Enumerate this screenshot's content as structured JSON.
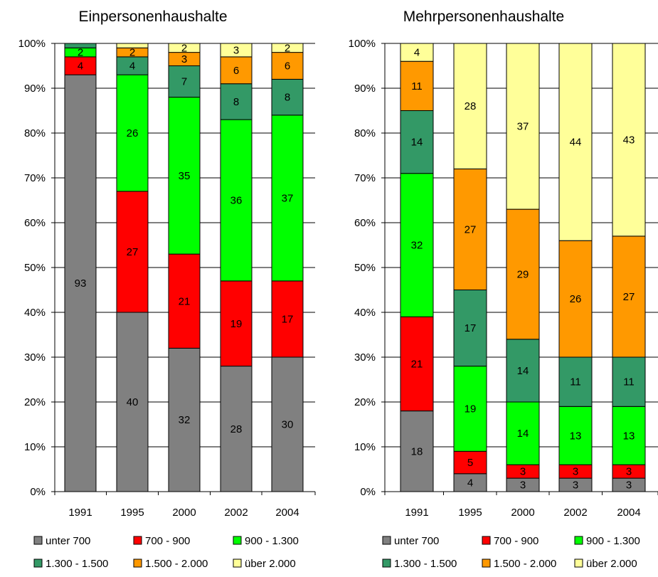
{
  "chart_data": [
    {
      "type": "bar",
      "stacked": true,
      "normalized": true,
      "title": "Einpersonenhaushalte",
      "categories": [
        "1991",
        "1995",
        "2000",
        "2002",
        "2004"
      ],
      "ylim": [
        0,
        100
      ],
      "yticks": [
        "0%",
        "10%",
        "20%",
        "30%",
        "40%",
        "50%",
        "60%",
        "70%",
        "80%",
        "90%",
        "100%"
      ],
      "grid": true,
      "legend_position": "bottom",
      "series": [
        {
          "name": "unter 700",
          "color": "#808080",
          "values": [
            93,
            40,
            32,
            28,
            30
          ]
        },
        {
          "name": "700 - 900",
          "color": "#ff0000",
          "values": [
            4,
            27,
            21,
            19,
            17
          ]
        },
        {
          "name": "900 - 1.300",
          "color": "#00ff00",
          "values": [
            2,
            26,
            35,
            36,
            37
          ]
        },
        {
          "name": "1.300 - 1.500",
          "color": "#339966",
          "values": [
            1,
            4,
            7,
            8,
            8
          ]
        },
        {
          "name": "1.500 - 2.000",
          "color": "#ff9900",
          "values": [
            0,
            2,
            3,
            6,
            6
          ]
        },
        {
          "name": "über 2.000",
          "color": "#ffff99",
          "values": [
            0,
            1,
            2,
            3,
            2
          ]
        }
      ],
      "data_labels": [
        [
          "93",
          "40",
          "32",
          "28",
          "30"
        ],
        [
          "4",
          "27",
          "21",
          "19",
          "17"
        ],
        [
          "2",
          "26",
          "35",
          "36",
          "37"
        ],
        [
          "",
          "4",
          "7",
          "8",
          "8"
        ],
        [
          "",
          "2",
          "3",
          "6",
          "6"
        ],
        [
          "",
          "",
          "2",
          "3",
          "2"
        ]
      ]
    },
    {
      "type": "bar",
      "stacked": true,
      "normalized": true,
      "title": "Mehrpersonenhaushalte",
      "categories": [
        "1991",
        "1995",
        "2000",
        "2002",
        "2004"
      ],
      "ylim": [
        0,
        100
      ],
      "yticks": [
        "0%",
        "10%",
        "20%",
        "30%",
        "40%",
        "50%",
        "60%",
        "70%",
        "80%",
        "90%",
        "100%"
      ],
      "grid": true,
      "legend_position": "bottom",
      "series": [
        {
          "name": "unter 700",
          "color": "#808080",
          "values": [
            18,
            4,
            3,
            3,
            3
          ]
        },
        {
          "name": "700 - 900",
          "color": "#ff0000",
          "values": [
            21,
            5,
            3,
            3,
            3
          ]
        },
        {
          "name": "900 - 1.300",
          "color": "#00ff00",
          "values": [
            32,
            19,
            14,
            13,
            13
          ]
        },
        {
          "name": "1.300 - 1.500",
          "color": "#339966",
          "values": [
            14,
            17,
            14,
            11,
            11
          ]
        },
        {
          "name": "1.500 - 2.000",
          "color": "#ff9900",
          "values": [
            11,
            27,
            29,
            26,
            27
          ]
        },
        {
          "name": "über 2.000",
          "color": "#ffff99",
          "values": [
            4,
            28,
            37,
            44,
            43
          ]
        }
      ],
      "data_labels": [
        [
          "18",
          "4",
          "3",
          "3",
          "3"
        ],
        [
          "21",
          "5",
          "3",
          "3",
          "3"
        ],
        [
          "32",
          "19",
          "14",
          "13",
          "13"
        ],
        [
          "14",
          "17",
          "14",
          "11",
          "11"
        ],
        [
          "11",
          "27",
          "29",
          "26",
          "27"
        ],
        [
          "4",
          "28",
          "37",
          "44",
          "43"
        ]
      ]
    }
  ]
}
